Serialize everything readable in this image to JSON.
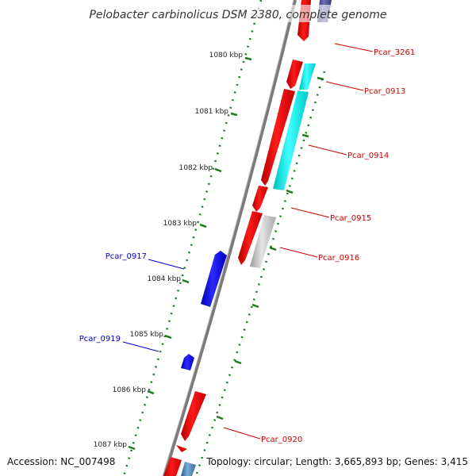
{
  "title": "Pelobacter carbinolicus DSM 2380, complete genome",
  "ticks": [
    {
      "label": "1080 kbp"
    },
    {
      "label": "1081 kbp"
    },
    {
      "label": "1082 kbp"
    },
    {
      "label": "1083 kbp"
    },
    {
      "label": "1084 kbp"
    },
    {
      "label": "1085 kbp"
    },
    {
      "label": "1086 kbp"
    },
    {
      "label": "1087 kbp"
    }
  ],
  "gene_labels": {
    "pcar_3261": "Pcar_3261",
    "pcar_0913": "Pcar_0913",
    "pcar_0914": "Pcar_0914",
    "pcar_0915": "Pcar_0915",
    "pcar_0916": "Pcar_0916",
    "pcar_0917": "Pcar_0917",
    "pcar_0919": "Pcar_0919",
    "pcar_0920": "Pcar_0920"
  },
  "footer": {
    "accession": "Accession: NC_007498",
    "summary": "Topology: circular; Length: 3,665,893 bp; Genes: 3,415"
  },
  "colors": {
    "cds_red": "#ff0000",
    "cds_cyan": "#00ffff",
    "cds_gray": "#c8c8c8",
    "cds_blue": "#0000ff",
    "cds_steel": "#4682b4",
    "cds_navy": "#4a4a90",
    "backbone": "#808080",
    "tick_green": "#1a7a1a",
    "label_red": "#cc0000",
    "label_blue": "#0000cc"
  }
}
